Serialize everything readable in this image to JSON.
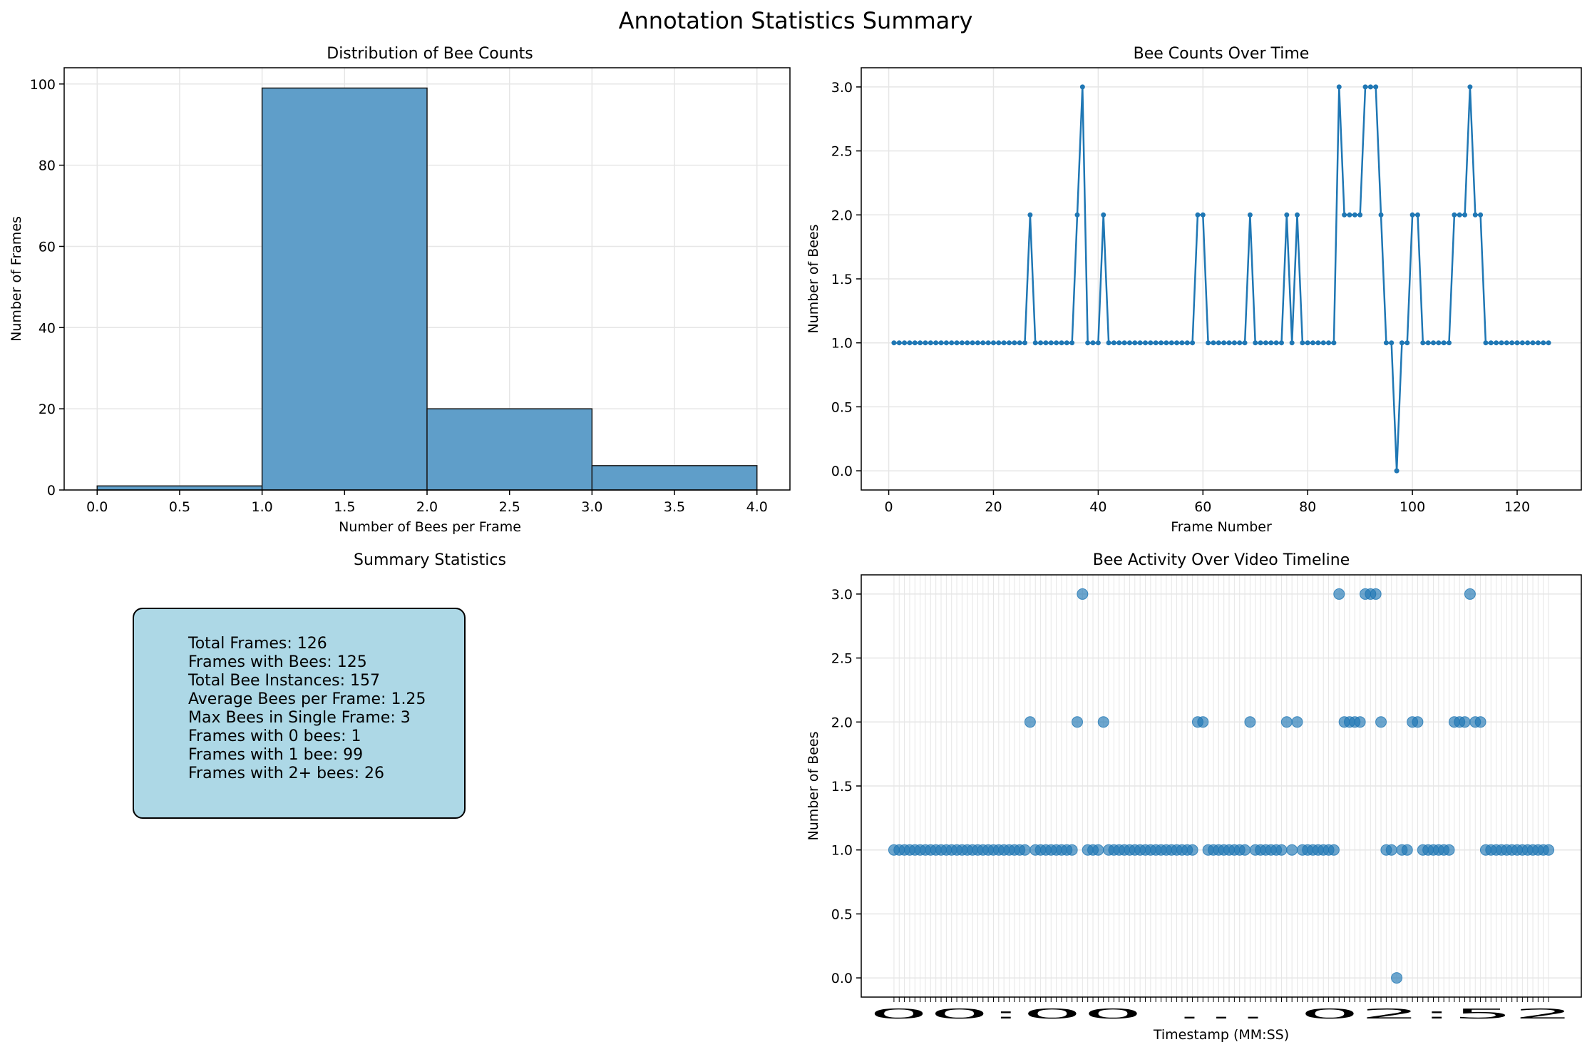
{
  "figure_title": "Annotation Statistics Summary",
  "summary_panel": {
    "title": "Summary Statistics",
    "lines": [
      "Total Frames: 126",
      "Frames with Bees: 125",
      "Total Bee Instances: 157",
      "Average Bees per Frame: 1.25",
      "Max Bees in Single Frame: 3",
      "Frames with 0 bees: 1",
      "Frames with 1 bee: 99",
      "Frames with 2+ bees: 26"
    ]
  },
  "colors": {
    "series": "#1f77b4",
    "bar_fill": "#5f9ec9",
    "summary_box": "#add8e6"
  },
  "chart_data": [
    {
      "type": "bar",
      "title": "Distribution of Bee Counts",
      "xlabel": "Number of Bees per Frame",
      "ylabel": "Number of Frames",
      "bins": [
        [
          0,
          1
        ],
        [
          1,
          2
        ],
        [
          2,
          3
        ],
        [
          3,
          4
        ]
      ],
      "values": [
        1,
        99,
        20,
        6
      ],
      "xlim": [
        -0.2,
        4.2
      ],
      "ylim": [
        0,
        104
      ],
      "xticks": [
        0.0,
        0.5,
        1.0,
        1.5,
        2.0,
        2.5,
        3.0,
        3.5,
        4.0
      ],
      "xtick_labels": [
        "0.0",
        "0.5",
        "1.0",
        "1.5",
        "2.0",
        "2.5",
        "3.0",
        "3.5",
        "4.0"
      ],
      "yticks": [
        0,
        20,
        40,
        60,
        80,
        100
      ],
      "ytick_labels": [
        "0",
        "20",
        "40",
        "60",
        "80",
        "100"
      ],
      "grid": true
    },
    {
      "type": "line",
      "title": "Bee Counts Over Time",
      "xlabel": "Frame Number",
      "ylabel": "Number of Bees",
      "x_start": 1,
      "values": [
        1,
        1,
        1,
        1,
        1,
        1,
        1,
        1,
        1,
        1,
        1,
        1,
        1,
        1,
        1,
        1,
        1,
        1,
        1,
        1,
        1,
        1,
        1,
        1,
        1,
        1,
        2,
        1,
        1,
        1,
        1,
        1,
        1,
        1,
        1,
        2,
        3,
        1,
        1,
        1,
        2,
        1,
        1,
        1,
        1,
        1,
        1,
        1,
        1,
        1,
        1,
        1,
        1,
        1,
        1,
        1,
        1,
        1,
        2,
        2,
        1,
        1,
        1,
        1,
        1,
        1,
        1,
        1,
        2,
        1,
        1,
        1,
        1,
        1,
        1,
        2,
        1,
        2,
        1,
        1,
        1,
        1,
        1,
        1,
        1,
        3,
        2,
        2,
        2,
        2,
        3,
        3,
        3,
        2,
        1,
        1,
        0,
        1,
        1,
        2,
        2,
        1,
        1,
        1,
        1,
        1,
        1,
        2,
        2,
        2,
        3,
        2,
        2,
        1,
        1,
        1,
        1,
        1,
        1,
        1,
        1,
        1,
        1,
        1,
        1,
        1
      ],
      "xlim": [
        -5.25,
        132.25
      ],
      "ylim": [
        -0.15,
        3.15
      ],
      "xticks": [
        0,
        20,
        40,
        60,
        80,
        100,
        120
      ],
      "xtick_labels": [
        "0",
        "20",
        "40",
        "60",
        "80",
        "100",
        "120"
      ],
      "yticks": [
        0,
        0.5,
        1,
        1.5,
        2,
        2.5,
        3
      ],
      "ytick_labels": [
        "0.0",
        "0.5",
        "1.0",
        "1.5",
        "2.0",
        "2.5",
        "3.0"
      ],
      "grid": true
    },
    {
      "type": "scatter",
      "title": "Bee Activity Over Video Timeline",
      "xlabel": "Timestamp (MM:SS)",
      "ylabel": "Number of Bees",
      "x_start": 1,
      "values": [
        1,
        1,
        1,
        1,
        1,
        1,
        1,
        1,
        1,
        1,
        1,
        1,
        1,
        1,
        1,
        1,
        1,
        1,
        1,
        1,
        1,
        1,
        1,
        1,
        1,
        1,
        2,
        1,
        1,
        1,
        1,
        1,
        1,
        1,
        1,
        2,
        3,
        1,
        1,
        1,
        2,
        1,
        1,
        1,
        1,
        1,
        1,
        1,
        1,
        1,
        1,
        1,
        1,
        1,
        1,
        1,
        1,
        1,
        2,
        2,
        1,
        1,
        1,
        1,
        1,
        1,
        1,
        1,
        2,
        1,
        1,
        1,
        1,
        1,
        1,
        2,
        1,
        2,
        1,
        1,
        1,
        1,
        1,
        1,
        1,
        3,
        2,
        2,
        2,
        2,
        3,
        3,
        3,
        2,
        1,
        1,
        0,
        1,
        1,
        2,
        2,
        1,
        1,
        1,
        1,
        1,
        1,
        2,
        2,
        2,
        3,
        2,
        2,
        1,
        1,
        1,
        1,
        1,
        1,
        1,
        1,
        1,
        1,
        1,
        1,
        1
      ],
      "ylim": [
        -0.15,
        3.15
      ],
      "yticks": [
        0,
        0.5,
        1,
        1.5,
        2,
        2.5,
        3
      ],
      "ytick_labels": [
        "0.0",
        "0.5",
        "1.0",
        "1.5",
        "2.0",
        "2.5",
        "3.0"
      ],
      "xtick_labels_overlapping": "00:00 … 02:52",
      "grid": true
    }
  ]
}
